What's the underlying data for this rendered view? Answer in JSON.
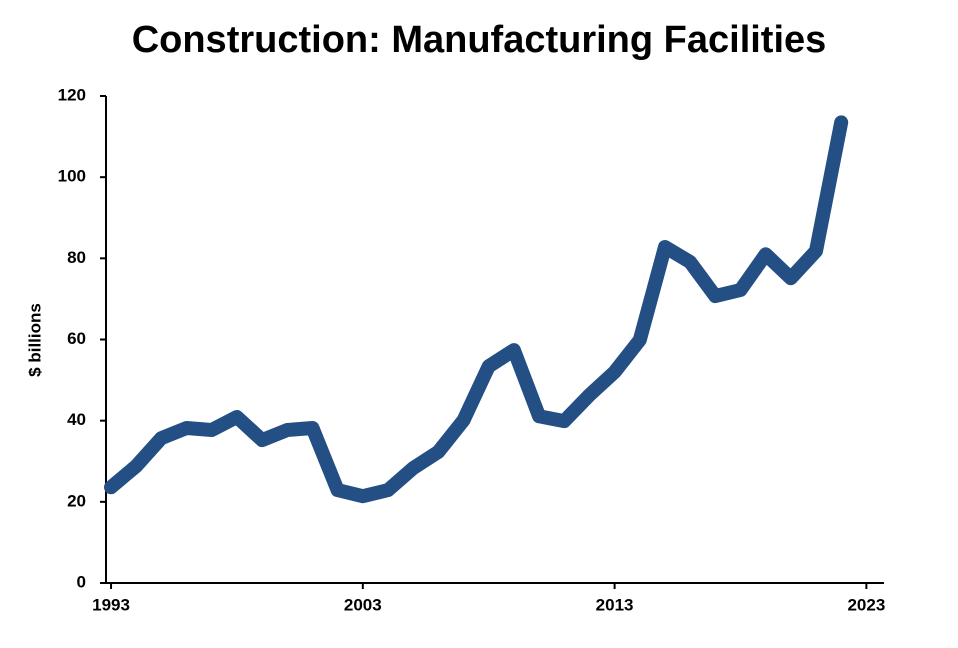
{
  "chart_data": {
    "type": "line",
    "title": "Construction: Manufacturing Facilities",
    "y_label": "$ billions",
    "x": [
      1993,
      1994,
      1995,
      1996,
      1997,
      1998,
      1999,
      2000,
      2001,
      2002,
      2003,
      2004,
      2005,
      2006,
      2007,
      2008,
      2009,
      2010,
      2011,
      2012,
      2013,
      2014,
      2015,
      2016,
      2017,
      2018,
      2019,
      2020,
      2021,
      2022
    ],
    "series": [
      {
        "name": "Manufacturing",
        "color": "#244f85",
        "values": [
          23.6,
          28.8,
          35.7,
          38.2,
          37.7,
          40.9,
          35.2,
          37.7,
          38.2,
          22.9,
          21.4,
          22.9,
          28.3,
          32.3,
          40.1,
          53.4,
          57.4,
          41.1,
          39.9,
          46.3,
          52.0,
          59.9,
          82.8,
          79.1,
          70.7,
          72.2,
          81.0,
          75.1,
          81.8,
          113.5
        ]
      }
    ],
    "xlim": [
      1992.8,
      2023.7
    ],
    "xticks": [
      1993,
      2003,
      2013,
      2023
    ],
    "ylim": [
      0,
      120
    ],
    "yticks": [
      0,
      20,
      40,
      60,
      80,
      100,
      120
    ]
  }
}
